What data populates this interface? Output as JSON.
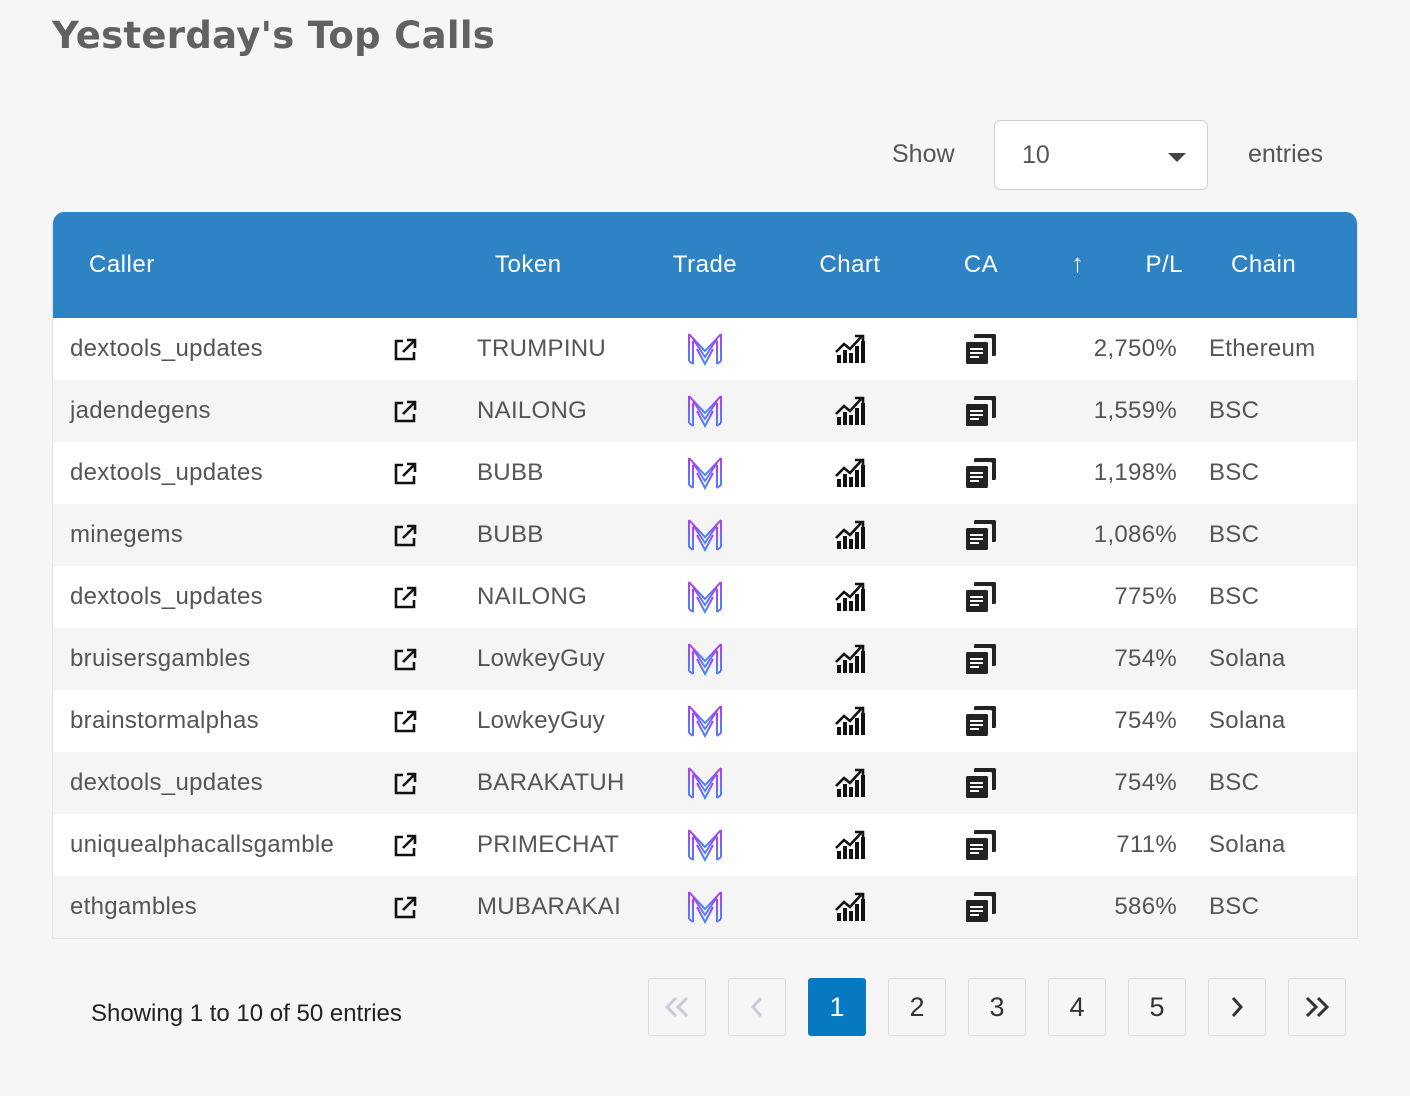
{
  "page": {
    "title": "Yesterday's Top Calls"
  },
  "length_menu": {
    "show_label": "Show",
    "selected": "10",
    "entries_label": "entries"
  },
  "table": {
    "columns": [
      "Caller",
      "Token",
      "Trade",
      "Chart",
      "CA",
      "P/L",
      "Chain"
    ],
    "sorted_column": "P/L",
    "sort_direction": "ascending-arrow",
    "rows": [
      {
        "caller": "dextools_updates",
        "token": "TRUMPINU",
        "pl": "2,750%",
        "chain": "Ethereum"
      },
      {
        "caller": "jadendegens",
        "token": "NAILONG",
        "pl": "1,559%",
        "chain": "BSC"
      },
      {
        "caller": "dextools_updates",
        "token": "BUBB",
        "pl": "1,198%",
        "chain": "BSC"
      },
      {
        "caller": "minegems",
        "token": "BUBB",
        "pl": "1,086%",
        "chain": "BSC"
      },
      {
        "caller": "dextools_updates",
        "token": "NAILONG",
        "pl": "775%",
        "chain": "BSC"
      },
      {
        "caller": "bruisersgambles",
        "token": "LowkeyGuy",
        "pl": "754%",
        "chain": "Solana"
      },
      {
        "caller": "brainstormalphas",
        "token": "LowkeyGuy",
        "pl": "754%",
        "chain": "Solana"
      },
      {
        "caller": "dextools_updates",
        "token": "BARAKATUH",
        "pl": "754%",
        "chain": "BSC"
      },
      {
        "caller": "uniquealphacallsgamble",
        "token": "PRIMECHAT",
        "pl": "711%",
        "chain": "Solana"
      },
      {
        "caller": "ethgambles",
        "token": "MUBARAKAI",
        "pl": "586%",
        "chain": "BSC"
      }
    ],
    "row_icons": {
      "link": "external-link-icon",
      "trade": "trade-logo-icon",
      "chart": "chart-icon",
      "ca": "copy-icon"
    }
  },
  "footer": {
    "info": "Showing 1 to 10 of 50 entries",
    "pages": [
      "1",
      "2",
      "3",
      "4",
      "5"
    ],
    "current_page": "1"
  },
  "colors": {
    "header_bg": "#2e83c4",
    "active_page": "#0679c2",
    "trade_logo_a": "#b43cf0",
    "trade_logo_b": "#3c8cff"
  }
}
